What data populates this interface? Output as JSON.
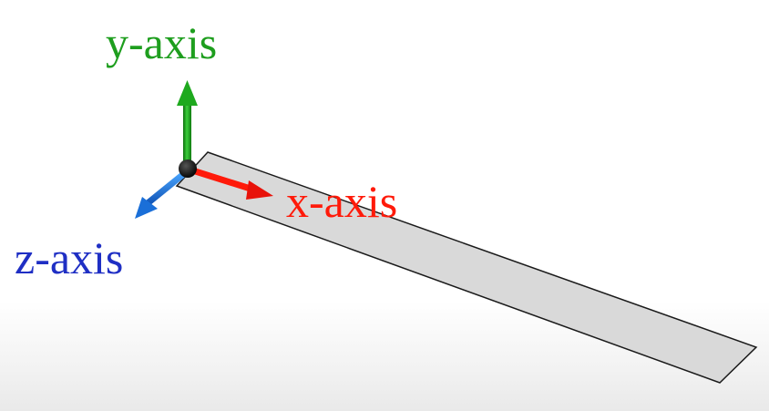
{
  "labels": {
    "y_axis": "y-axis",
    "x_axis": "x-axis",
    "z_axis": "z-axis"
  },
  "colors": {
    "y_axis": "#1e9e1e",
    "x_axis": "#ff1a0a",
    "z_axis": "#1f2fc4",
    "z_arrow": "#1e78e6",
    "strip_fill": "#d9d9d9",
    "strip_edge": "#1a1a1a",
    "origin": "#111111"
  }
}
